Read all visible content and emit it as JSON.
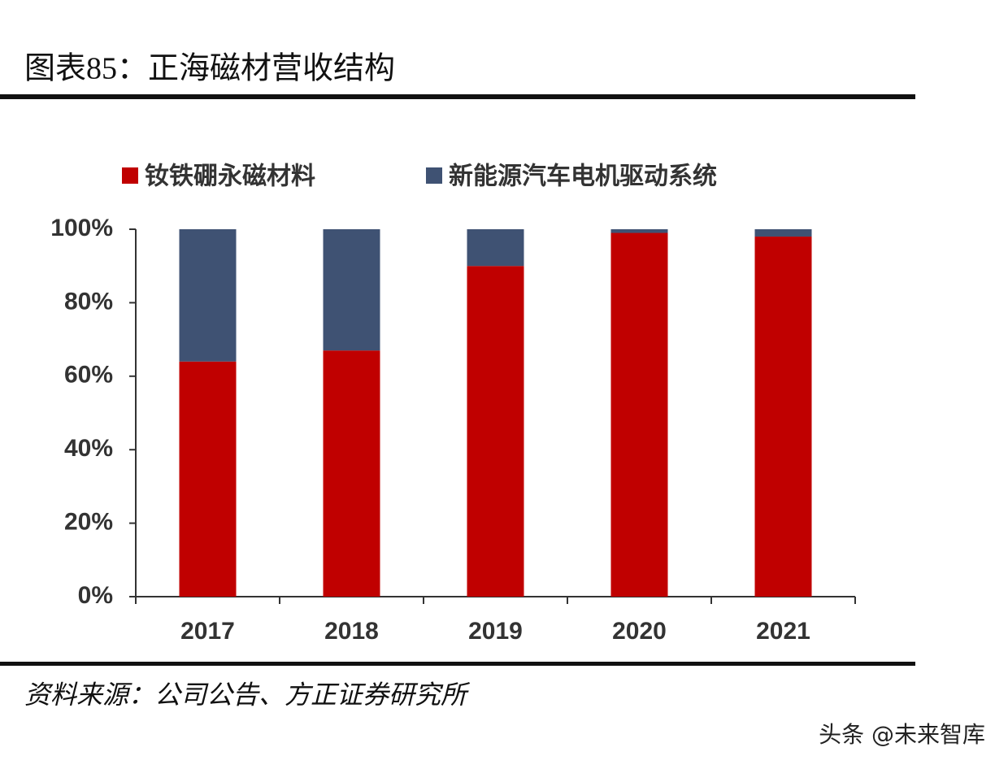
{
  "chart_data": {
    "type": "stacked_bar",
    "title": "图表85：正海磁材营收结构",
    "categories": [
      "2017",
      "2018",
      "2019",
      "2020",
      "2021"
    ],
    "series": [
      {
        "name": "钕铁硼永磁材料",
        "color": "#c00000",
        "values": [
          64,
          67,
          90,
          99,
          98
        ]
      },
      {
        "name": "新能源汽车电机驱动系统",
        "color": "#3f5273",
        "values": [
          36,
          33,
          10,
          1,
          2
        ]
      }
    ],
    "ylim": [
      0,
      100
    ],
    "yticks": [
      {
        "value": 0,
        "label": "0%"
      },
      {
        "value": 20,
        "label": "20%"
      },
      {
        "value": 40,
        "label": "40%"
      },
      {
        "value": 60,
        "label": "60%"
      },
      {
        "value": 80,
        "label": "80%"
      },
      {
        "value": 100,
        "label": "100%"
      }
    ],
    "grid": false,
    "legend": "top",
    "source": "资料来源：公司公告、方正证券研究所",
    "watermark": "头条 @未来智库"
  }
}
